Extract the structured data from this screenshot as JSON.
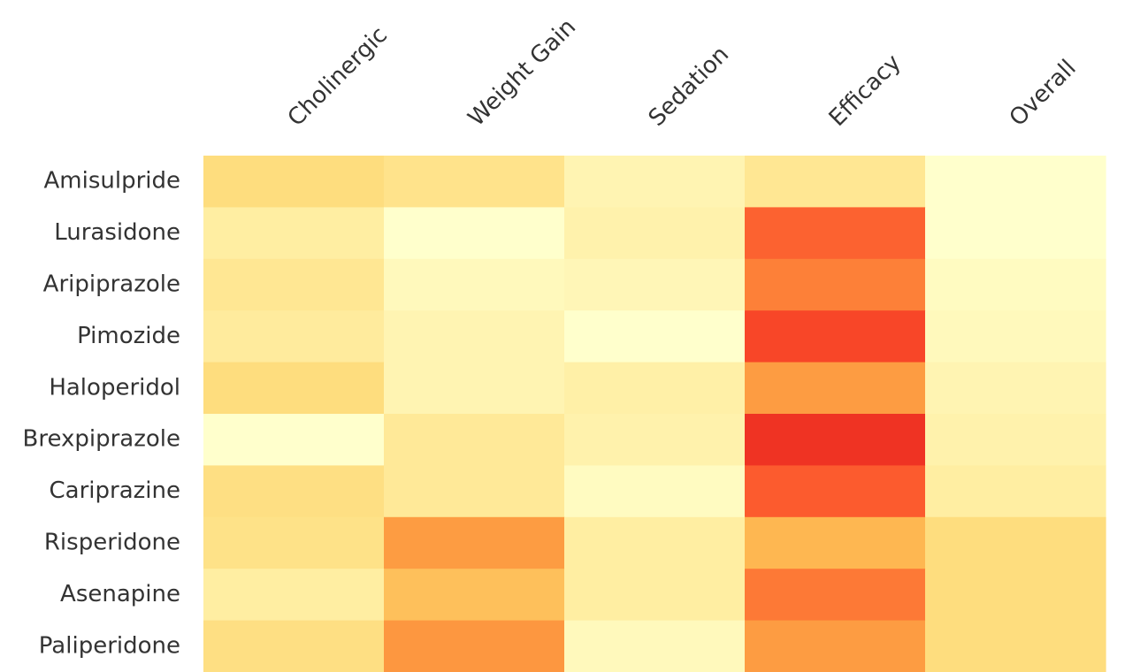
{
  "chart_data": {
    "type": "heatmap",
    "columns": [
      "Cholinergic",
      "Weight Gain",
      "Sedation",
      "Efficacy",
      "Overall"
    ],
    "rows": [
      "Amisulpride",
      "Lurasidone",
      "Aripiprazole",
      "Pimozide",
      "Haloperidol",
      "Brexpiprazole",
      "Cariprazine",
      "Risperidone",
      "Asenapine",
      "Paliperidone"
    ],
    "values": [
      [
        0.3,
        0.25,
        0.1,
        0.22,
        0.0
      ],
      [
        0.16,
        0.0,
        0.12,
        0.78,
        0.0
      ],
      [
        0.22,
        0.06,
        0.08,
        0.7,
        0.04
      ],
      [
        0.18,
        0.1,
        0.0,
        0.86,
        0.06
      ],
      [
        0.3,
        0.1,
        0.14,
        0.6,
        0.1
      ],
      [
        0.0,
        0.2,
        0.12,
        0.92,
        0.12
      ],
      [
        0.28,
        0.2,
        0.04,
        0.8,
        0.16
      ],
      [
        0.26,
        0.6,
        0.16,
        0.48,
        0.3
      ],
      [
        0.16,
        0.44,
        0.16,
        0.72,
        0.3
      ],
      [
        0.28,
        0.62,
        0.06,
        0.6,
        0.3
      ]
    ],
    "colormap": [
      "#ffffcc",
      "#ffeda0",
      "#fed976",
      "#feb24c",
      "#fd8d3c",
      "#fc4e2a",
      "#e31a1c"
    ],
    "vmin": 0,
    "vmax": 1,
    "colorbar": false,
    "grid": false
  }
}
